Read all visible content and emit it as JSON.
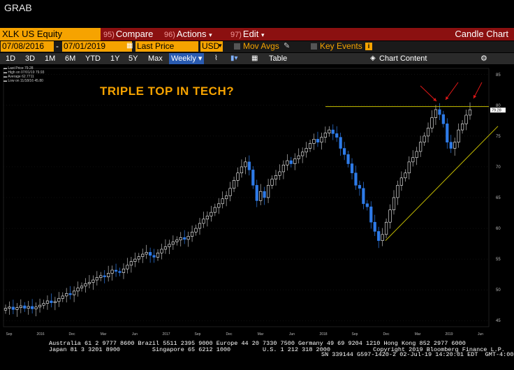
{
  "window": {
    "label": "GRAB"
  },
  "command_bar": {
    "security": "XLK US Equity",
    "compare": {
      "num": "95)",
      "label": "Compare"
    },
    "actions": {
      "num": "96)",
      "label": "Actions"
    },
    "edit": {
      "num": "97)",
      "label": "Edit"
    },
    "title": "Candle Chart"
  },
  "params": {
    "start_date": "07/08/2016",
    "end_date": "07/01/2019",
    "field": "Last Price",
    "currency": "USD",
    "mov_avgs": "Mov Avgs",
    "key_events": "Key Events"
  },
  "periods": [
    "1D",
    "3D",
    "1M",
    "6M",
    "YTD",
    "1Y",
    "5Y",
    "Max"
  ],
  "frequency": "Weekly",
  "table_label": "Table",
  "chart_content_label": "Chart Content",
  "legend": {
    "title": "Last Price",
    "items": [
      {
        "label": "Last Price",
        "value": "79.28"
      },
      {
        "label": "High on 07/01/19",
        "value": "79.93"
      },
      {
        "label": "Average",
        "value": "62.7711"
      },
      {
        "label": "Low on 11/18/16",
        "value": "45.80"
      }
    ]
  },
  "annotation": "TRIPLE TOP IN TECH?",
  "colors": {
    "accent": "#f6a300",
    "up": "#ffffff",
    "down": "#2e7be8",
    "resistance": "#c8c000"
  },
  "chart_data": {
    "type": "candlestick",
    "y_ticks": [
      85,
      80,
      75,
      70,
      65,
      60,
      55,
      50,
      45
    ],
    "last_price_tag": "79.28",
    "x_ticks": [
      "Sep",
      "2016",
      "Dec",
      "Mar",
      "Jun",
      "2017",
      "Sep",
      "Dec",
      "Mar",
      "Jun",
      "2018",
      "Sep",
      "Dec",
      "Mar",
      "2019",
      "Jun"
    ],
    "ylim": [
      44,
      86
    ],
    "resistance_level": 79.8,
    "closes": [
      47.0,
      47.2,
      46.8,
      47.1,
      47.4,
      47.0,
      47.3,
      46.9,
      47.2,
      47.5,
      47.8,
      48.2,
      47.9,
      48.1,
      48.6,
      49.0,
      49.4,
      49.2,
      49.8,
      50.3,
      50.6,
      51.0,
      51.2,
      51.6,
      52.0,
      52.3,
      52.1,
      52.7,
      53.2,
      53.0,
      52.8,
      53.4,
      54.0,
      54.6,
      55.0,
      55.4,
      55.8,
      56.1,
      55.6,
      55.3,
      56.0,
      56.6,
      57.0,
      57.4,
      57.8,
      58.1,
      58.5,
      58.2,
      58.7,
      59.4,
      60.0,
      60.8,
      61.5,
      62.0,
      62.6,
      63.4,
      64.0,
      64.8,
      65.3,
      66.5,
      67.8,
      69.0,
      70.0,
      70.8,
      69.5,
      67.0,
      64.5,
      66.0,
      65.0,
      67.0,
      68.0,
      68.6,
      69.2,
      70.3,
      71.0,
      70.5,
      71.3,
      71.8,
      72.4,
      73.0,
      73.8,
      74.5,
      74.0,
      74.8,
      75.5,
      76.0,
      75.4,
      74.8,
      73.0,
      72.0,
      70.5,
      69.0,
      67.0,
      66.5,
      64.0,
      63.5,
      61.0,
      59.5,
      58.0,
      59.0,
      61.0,
      63.0,
      65.0,
      67.0,
      68.2,
      69.0,
      70.8,
      71.5,
      72.5,
      74.0,
      75.0,
      76.3,
      78.0,
      79.3,
      78.5,
      77.0,
      74.0,
      73.0,
      74.0,
      76.0,
      77.0,
      78.4,
      79.28
    ]
  },
  "footer": {
    "line1": "Australia 61 2 9777 8600 Brazil 5511 2395 9000 Europe 44 20 7330 7500 Germany 49 69 9204 1210 Hong Kong 852 2977 6000",
    "line2": "Japan 81 3 3201 8900         Singapore 65 6212 1000         U.S. 1 212 318 2000            Copyright 2019 Bloomberg Finance L.P.",
    "line3": "SN 339144 G597-1420-2 02-Jul-19 14:20:01 EDT  GMT-4:00"
  }
}
